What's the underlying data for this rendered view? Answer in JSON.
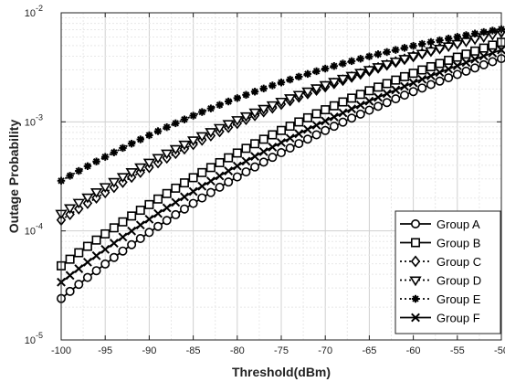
{
  "chart_data": {
    "type": "line",
    "xlabel": "Threshold(dBm)",
    "ylabel": "Outage Probability",
    "x_scale": "linear",
    "y_scale": "log",
    "xlim": [
      -100,
      -50
    ],
    "ylim": [
      1e-05,
      0.01
    ],
    "grid": true,
    "minor_grid": true,
    "legend_position": "bottom-right",
    "x_ticks": [
      "-100",
      "-95",
      "-90",
      "-85",
      "-80",
      "-75",
      "-70",
      "-65",
      "-60",
      "-55",
      "-50"
    ],
    "y_ticks": [
      {
        "mantissa": "10",
        "exp": "-5"
      },
      {
        "mantissa": "10",
        "exp": "-4"
      },
      {
        "mantissa": "10",
        "exp": "-3"
      },
      {
        "mantissa": "10",
        "exp": "-2"
      }
    ],
    "x": [
      -100,
      -99,
      -98,
      -97,
      -96,
      -95,
      -94,
      -93,
      -92,
      -91,
      -90,
      -89,
      -88,
      -87,
      -86,
      -85,
      -84,
      -83,
      -82,
      -81,
      -80,
      -79,
      -78,
      -77,
      -76,
      -75,
      -74,
      -73,
      -72,
      -71,
      -70,
      -69,
      -68,
      -67,
      -66,
      -65,
      -64,
      -63,
      -62,
      -61,
      -60,
      -59,
      -58,
      -57,
      -56,
      -55,
      -54,
      -53,
      -52,
      -51,
      -50
    ],
    "series": [
      {
        "name": "Group A",
        "marker": "circle",
        "line": "solid",
        "color": "#000000",
        "y_log10_start": -4.62,
        "y_log10_end": -2.42,
        "curve": [
          0.55,
          0.3
        ]
      },
      {
        "name": "Group B",
        "marker": "square",
        "line": "solid",
        "color": "#000000",
        "y_log10_start": -4.32,
        "y_log10_end": -2.27,
        "curve": [
          0.5,
          0.27
        ]
      },
      {
        "name": "Group C",
        "marker": "diamond",
        "line": "dotted",
        "color": "#000000",
        "y_log10_start": -3.9,
        "y_log10_end": -2.17,
        "curve": [
          0.45,
          0.22
        ]
      },
      {
        "name": "Group D",
        "marker": "triangle-down",
        "line": "dotted",
        "color": "#000000",
        "y_log10_start": -3.84,
        "y_log10_end": -2.18,
        "curve": [
          0.45,
          0.22
        ]
      },
      {
        "name": "Group E",
        "marker": "asterisk",
        "line": "dotted",
        "color": "#000000",
        "y_log10_start": -3.54,
        "y_log10_end": -2.15,
        "curve": [
          0.45,
          0.15
        ]
      },
      {
        "name": "Group F",
        "marker": "x",
        "line": "solid",
        "color": "#000000",
        "y_log10_start": -4.47,
        "y_log10_end": -2.34,
        "curve": [
          0.5,
          0.28
        ]
      }
    ]
  }
}
